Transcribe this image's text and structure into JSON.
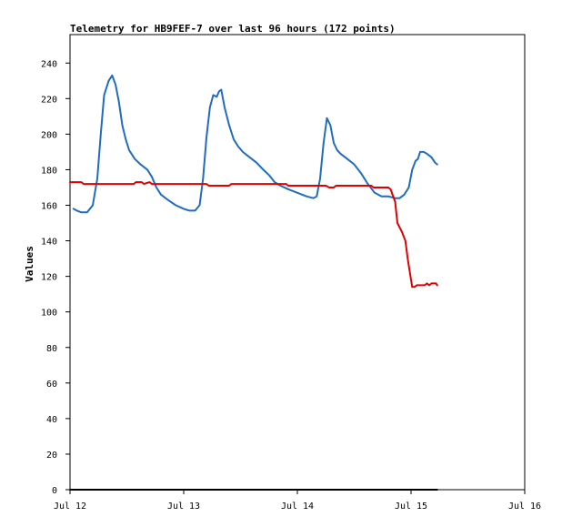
{
  "chart_data": {
    "type": "line",
    "title": "Telemetry for HB9FEF-7 over last 96 hours (172 points)",
    "xlabel": "",
    "ylabel": "Values",
    "x_ticks": [
      "Jul 12",
      "Jul 13",
      "Jul 14",
      "Jul 15",
      "Jul 16"
    ],
    "x_range_days": [
      0,
      4
    ],
    "y_ticks": [
      0,
      20,
      40,
      60,
      80,
      100,
      120,
      140,
      160,
      180,
      200,
      220,
      240
    ],
    "ylim": [
      0,
      256
    ],
    "grid": false,
    "colors": {
      "blue": "#1f6cc0",
      "red": "#e00000",
      "black": "#000000"
    },
    "series": [
      {
        "color": "blue",
        "points": [
          [
            0.03,
            158
          ],
          [
            0.06,
            157
          ],
          [
            0.1,
            156
          ],
          [
            0.15,
            156
          ],
          [
            0.2,
            160
          ],
          [
            0.24,
            175
          ],
          [
            0.27,
            200
          ],
          [
            0.3,
            222
          ],
          [
            0.34,
            230
          ],
          [
            0.37,
            233
          ],
          [
            0.4,
            228
          ],
          [
            0.43,
            218
          ],
          [
            0.46,
            205
          ],
          [
            0.49,
            197
          ],
          [
            0.52,
            191
          ],
          [
            0.57,
            186
          ],
          [
            0.62,
            183
          ],
          [
            0.68,
            180
          ],
          [
            0.72,
            176
          ],
          [
            0.76,
            170
          ],
          [
            0.8,
            166
          ],
          [
            0.86,
            163
          ],
          [
            0.93,
            160
          ],
          [
            1.0,
            158
          ],
          [
            1.05,
            157
          ],
          [
            1.1,
            157
          ],
          [
            1.14,
            160
          ],
          [
            1.17,
            175
          ],
          [
            1.2,
            198
          ],
          [
            1.23,
            215
          ],
          [
            1.26,
            222
          ],
          [
            1.29,
            221
          ],
          [
            1.31,
            224
          ],
          [
            1.33,
            225
          ],
          [
            1.36,
            215
          ],
          [
            1.4,
            205
          ],
          [
            1.44,
            197
          ],
          [
            1.48,
            193
          ],
          [
            1.52,
            190
          ],
          [
            1.58,
            187
          ],
          [
            1.64,
            184
          ],
          [
            1.7,
            180
          ],
          [
            1.75,
            177
          ],
          [
            1.8,
            173
          ],
          [
            1.85,
            171
          ],
          [
            1.92,
            169
          ],
          [
            2.0,
            167
          ],
          [
            2.08,
            165
          ],
          [
            2.14,
            164
          ],
          [
            2.17,
            165
          ],
          [
            2.2,
            175
          ],
          [
            2.23,
            195
          ],
          [
            2.26,
            209
          ],
          [
            2.29,
            205
          ],
          [
            2.32,
            195
          ],
          [
            2.35,
            191
          ],
          [
            2.38,
            189
          ],
          [
            2.44,
            186
          ],
          [
            2.5,
            183
          ],
          [
            2.56,
            178
          ],
          [
            2.62,
            172
          ],
          [
            2.68,
            167
          ],
          [
            2.74,
            165
          ],
          [
            2.8,
            165
          ],
          [
            2.86,
            164
          ],
          [
            2.9,
            164
          ],
          [
            2.94,
            166
          ],
          [
            2.98,
            170
          ],
          [
            3.01,
            180
          ],
          [
            3.04,
            185
          ],
          [
            3.06,
            186
          ],
          [
            3.08,
            190
          ],
          [
            3.11,
            190
          ],
          [
            3.14,
            189
          ],
          [
            3.18,
            187
          ],
          [
            3.21,
            184
          ],
          [
            3.23,
            183
          ]
        ]
      },
      {
        "color": "red",
        "points": [
          [
            0.0,
            173
          ],
          [
            0.1,
            173
          ],
          [
            0.12,
            172
          ],
          [
            0.56,
            172
          ],
          [
            0.58,
            173
          ],
          [
            0.63,
            173
          ],
          [
            0.65,
            172
          ],
          [
            0.7,
            173
          ],
          [
            0.72,
            172
          ],
          [
            1.2,
            172
          ],
          [
            1.22,
            171
          ],
          [
            1.4,
            171
          ],
          [
            1.42,
            172
          ],
          [
            1.9,
            172
          ],
          [
            1.92,
            171
          ],
          [
            2.25,
            171
          ],
          [
            2.28,
            170
          ],
          [
            2.32,
            170
          ],
          [
            2.34,
            171
          ],
          [
            2.65,
            171
          ],
          [
            2.67,
            170
          ],
          [
            2.8,
            170
          ],
          [
            2.82,
            169
          ],
          [
            2.86,
            162
          ],
          [
            2.88,
            150
          ],
          [
            2.92,
            145
          ],
          [
            2.95,
            140
          ],
          [
            2.97,
            130
          ],
          [
            3.0,
            118
          ],
          [
            3.01,
            114
          ],
          [
            3.03,
            114
          ],
          [
            3.05,
            115
          ],
          [
            3.12,
            115
          ],
          [
            3.14,
            116
          ],
          [
            3.16,
            115
          ],
          [
            3.18,
            116
          ],
          [
            3.2,
            116
          ],
          [
            3.22,
            116
          ],
          [
            3.23,
            115
          ]
        ]
      },
      {
        "color": "black",
        "points": [
          [
            0.0,
            0
          ],
          [
            3.23,
            0
          ]
        ]
      }
    ]
  }
}
